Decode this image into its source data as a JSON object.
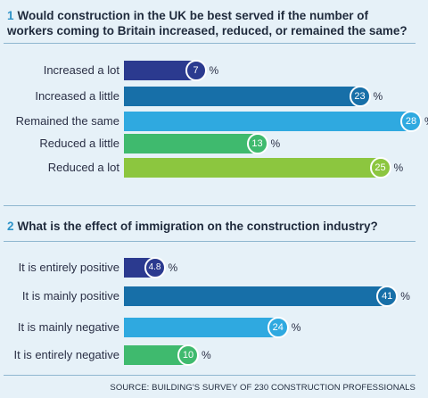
{
  "colors": {
    "dark_navy": "#2b3a8f",
    "dark_blue": "#176fa8",
    "light_blue": "#2fa9e0",
    "green": "#3fba6e",
    "lime": "#8cc63f",
    "background": "#e6f1f8"
  },
  "chart_data": [
    {
      "type": "bar",
      "orientation": "horizontal",
      "number": "1",
      "title": "Would construction in the UK be best served if the number of workers coming to Britain increased, reduced, or remained the same?",
      "unit": "%",
      "categories": [
        "Increased a lot",
        "Increased a little",
        "Remained the same",
        "Reduced a little",
        "Reduced a lot"
      ],
      "values": [
        7,
        23,
        28,
        13,
        25
      ],
      "value_labels": [
        "7",
        "23",
        "28",
        "13",
        "25"
      ],
      "bar_colors": [
        "#2b3a8f",
        "#176fa8",
        "#2fa9e0",
        "#3fba6e",
        "#8cc63f"
      ],
      "bubble_colors": [
        "#2b3a8f",
        "#176fa8",
        "#2fa9e0",
        "#3fba6e",
        "#8cc63f"
      ]
    },
    {
      "type": "bar",
      "orientation": "horizontal",
      "number": "2",
      "title": "What is the effect of immigration on the construction industry?",
      "unit": "%",
      "categories": [
        "It is entirely positive",
        "It is mainly positive",
        "It is mainly negative",
        "It is entirely negative"
      ],
      "values": [
        4.8,
        41,
        24,
        10
      ],
      "value_labels": [
        "4.8",
        "41",
        "24",
        "10"
      ],
      "bar_colors": [
        "#2b3a8f",
        "#176fa8",
        "#2fa9e0",
        "#3fba6e"
      ],
      "bubble_colors": [
        "#2b3a8f",
        "#176fa8",
        "#2fa9e0",
        "#3fba6e"
      ]
    }
  ],
  "source": "SOURCE: BUILDING'S SURVEY OF 230 CONSTRUCTION PROFESSIONALS"
}
